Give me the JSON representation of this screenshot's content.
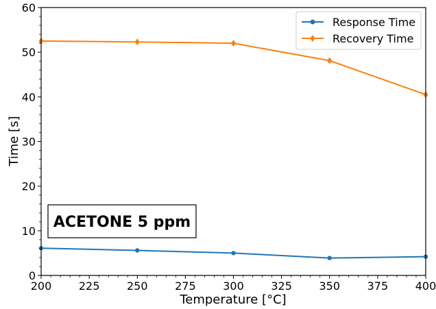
{
  "chart_data": {
    "type": "line",
    "x": [
      200,
      250,
      300,
      350,
      400
    ],
    "series": [
      {
        "name": "Response Time",
        "values": [
          6.1,
          5.6,
          5.0,
          3.9,
          4.2
        ],
        "color": "#1f77b4",
        "marker": "circle"
      },
      {
        "name": "Recovery Time",
        "values": [
          52.5,
          52.3,
          52.0,
          48.1,
          40.5
        ],
        "color": "#ff7f0e",
        "marker": "diamond"
      }
    ],
    "xlabel": "Temperature [°C]",
    "ylabel": "Time [s]",
    "xlim": [
      200,
      400
    ],
    "ylim": [
      0,
      60
    ],
    "xticks": [
      200,
      225,
      250,
      275,
      300,
      325,
      350,
      375,
      400
    ],
    "yticks": [
      0,
      10,
      20,
      30,
      40,
      50,
      60
    ],
    "legend_position": "top-right",
    "grid": false,
    "annotation": "ACETONE 5 ppm"
  }
}
